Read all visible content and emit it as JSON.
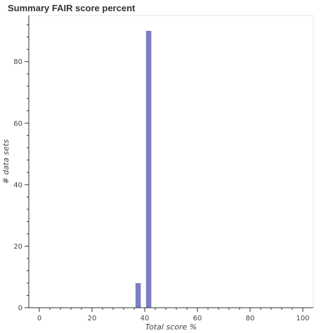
{
  "chart_data": {
    "type": "bar",
    "title": "Summary FAIR score percent",
    "xlabel": "Total score %",
    "ylabel": "# data sets",
    "xlim": [
      -4,
      104
    ],
    "ylim": [
      0,
      95
    ],
    "x_ticks": [
      0,
      20,
      40,
      60,
      80,
      100
    ],
    "y_ticks": [
      0,
      20,
      40,
      60,
      80
    ],
    "bar_width": 2,
    "bars": [
      {
        "x": 37.5,
        "value": 8
      },
      {
        "x": 41.5,
        "value": 90
      }
    ],
    "bar_color": "#7b7fc4",
    "grid": false,
    "legend": "none"
  }
}
